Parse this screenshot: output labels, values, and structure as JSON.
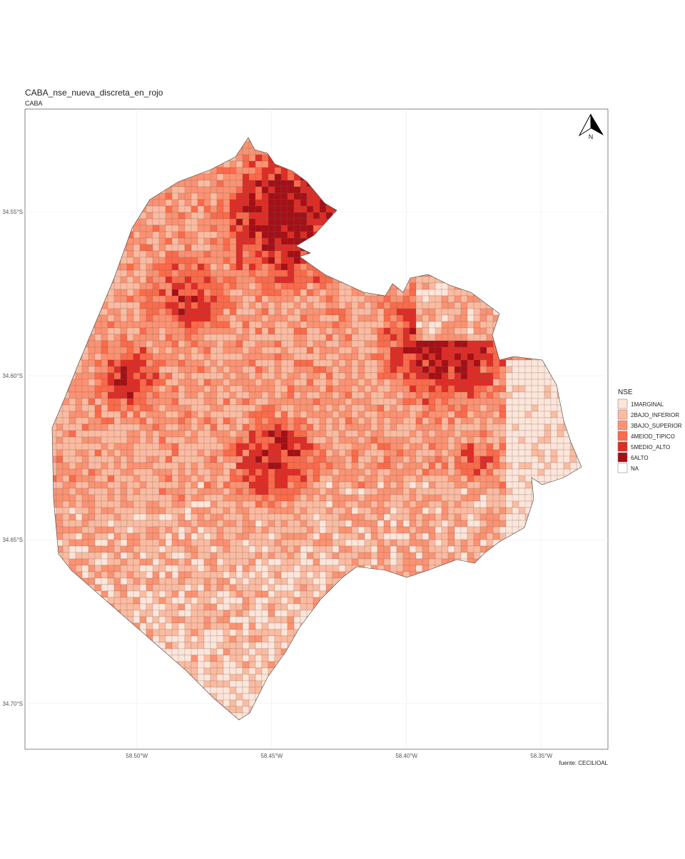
{
  "title": "CABA_nse_nueva_discreta_en_rojo",
  "subtitle": "CABA",
  "caption": "fuente: CECILIOAL",
  "north_label": "N",
  "x_axis": {
    "lim": [
      -58.5415,
      -58.3253
    ],
    "ticks": [
      {
        "value": -58.5,
        "label": "58.50°W"
      },
      {
        "value": -58.45,
        "label": "58.45°W"
      },
      {
        "value": -58.4,
        "label": "58.40°W"
      },
      {
        "value": -58.35,
        "label": "58.35°W"
      }
    ]
  },
  "y_axis": {
    "lim": [
      -34.5187,
      -34.7139
    ],
    "ticks": [
      {
        "value": -34.55,
        "label": "34.55°S"
      },
      {
        "value": -34.6,
        "label": "34.60°S"
      },
      {
        "value": -34.65,
        "label": "34.65°S"
      },
      {
        "value": -34.7,
        "label": "34.70°S"
      }
    ]
  },
  "legend": {
    "title": "NSE",
    "items": [
      {
        "label": "1MARGINAL",
        "color": "#fee5d9"
      },
      {
        "label": "2BAJO_INFERIOR",
        "color": "#fcbba1"
      },
      {
        "label": "3BAJO_SUPERIOR",
        "color": "#fc9272"
      },
      {
        "label": "4MEIOD_TIPICO",
        "color": "#fb6a4a"
      },
      {
        "label": "5MEDIO_ALTO",
        "color": "#de2d26"
      },
      {
        "label": "6ALTO",
        "color": "#a50f15"
      },
      {
        "label": "NA",
        "color": "#ffffff"
      }
    ]
  }
}
